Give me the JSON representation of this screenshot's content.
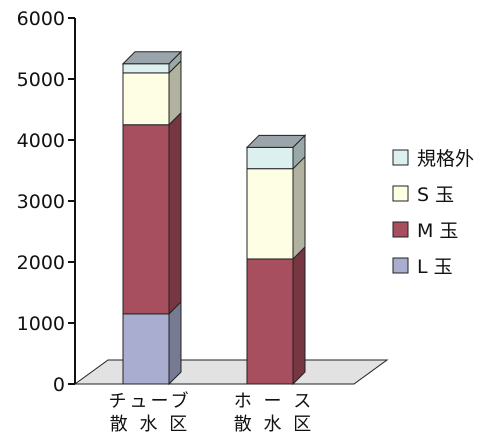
{
  "chart_data": {
    "type": "bar",
    "stacked": true,
    "style": "3d",
    "categories": [
      [
        "チューブ",
        "散 水 区"
      ],
      [
        "ホ ー ス",
        "散 水 区"
      ]
    ],
    "series": [
      {
        "name": "L 玉",
        "values": [
          1150,
          0
        ],
        "color": "#a9aed0"
      },
      {
        "name": "M 玉",
        "values": [
          3100,
          2050
        ],
        "color": "#a84f5f"
      },
      {
        "name": "S 玉",
        "values": [
          850,
          1480
        ],
        "color": "#fefee4"
      },
      {
        "name": "規格外",
        "values": [
          150,
          350
        ],
        "color": "#dcf0f0"
      }
    ],
    "ylim": [
      0,
      6000
    ],
    "yticks": [
      0,
      1000,
      2000,
      3000,
      4000,
      5000,
      6000
    ],
    "legend_position": "right",
    "grid": false
  }
}
